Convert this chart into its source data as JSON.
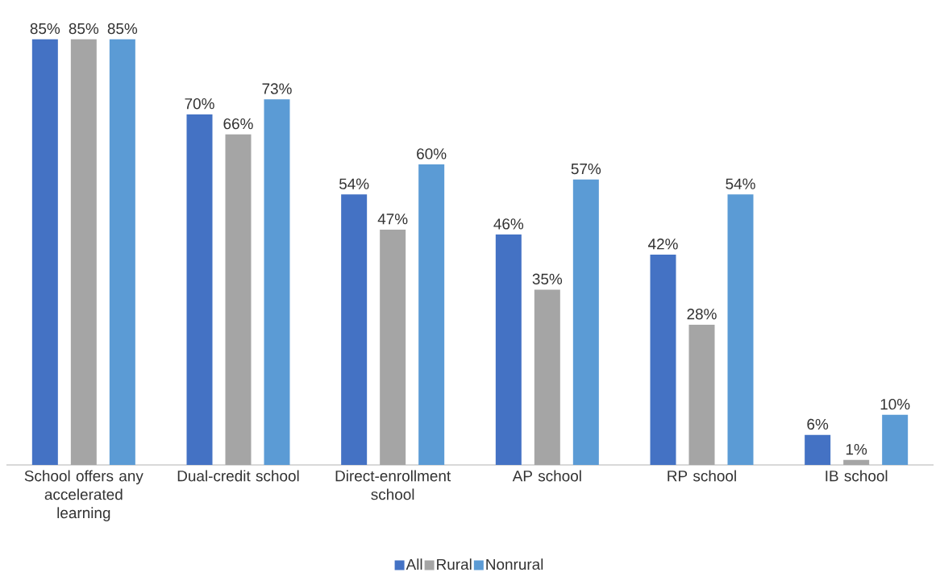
{
  "chart_data": {
    "type": "bar",
    "categories": [
      "School offers any accelerated learning",
      "Dual-credit school",
      "Direct-enrollment school",
      "AP school",
      "RP school",
      "IB school"
    ],
    "series": [
      {
        "name": "All",
        "color": "#4472c4",
        "values": [
          85,
          70,
          54,
          46,
          42,
          6
        ],
        "value_labels": [
          "85%",
          "70%",
          "54%",
          "46%",
          "42%",
          "6%"
        ]
      },
      {
        "name": "Rural",
        "color": "#a5a5a5",
        "values": [
          85,
          66,
          47,
          35,
          28,
          1
        ],
        "value_labels": [
          "85%",
          "66%",
          "47%",
          "35%",
          "28%",
          "1%"
        ]
      },
      {
        "name": "Nonrural",
        "color": "#5b9bd5",
        "values": [
          85,
          73,
          60,
          57,
          54,
          10
        ],
        "value_labels": [
          "85%",
          "73%",
          "60%",
          "57%",
          "54%",
          "10%"
        ]
      }
    ],
    "legend": "bottom"
  }
}
